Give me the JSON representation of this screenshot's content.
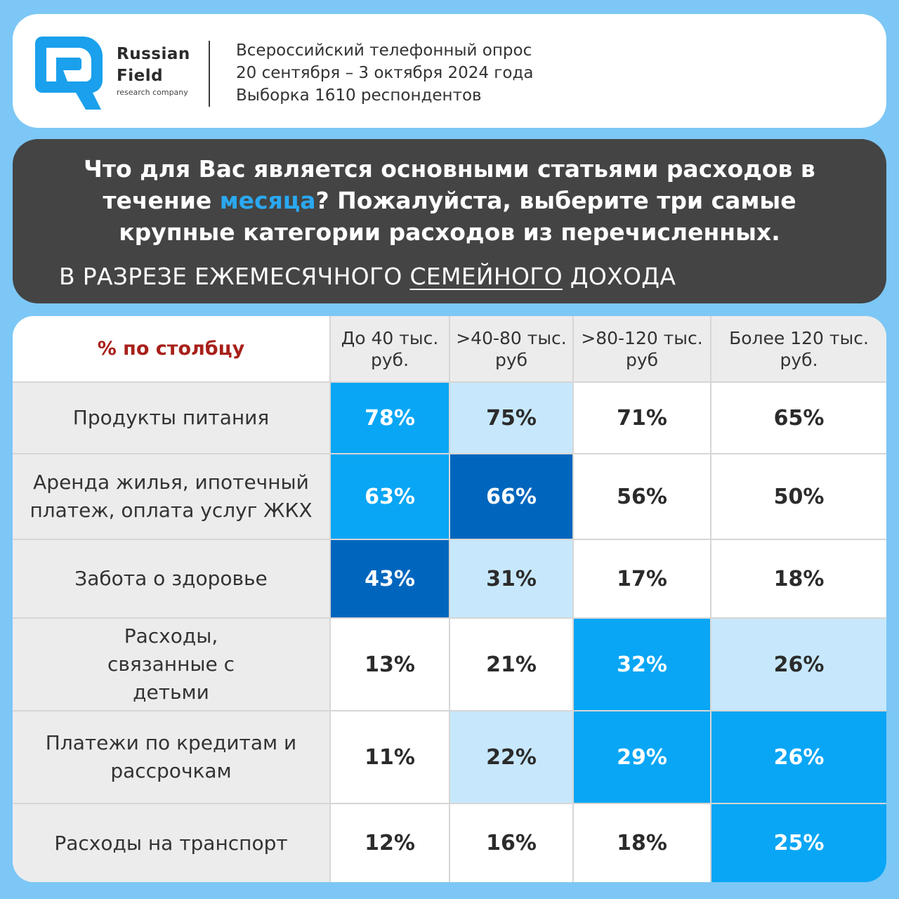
{
  "brand": {
    "name_line1": "Russian",
    "name_line2": "Field",
    "tagline": "research company",
    "logo_color": "#1aa0ec"
  },
  "survey": {
    "line1": "Всероссийский телефонный опрос",
    "line2": "20 сентября – 3 октября 2024 года",
    "line3": "Выборка 1610 респондентов"
  },
  "question": {
    "part1": "Что для Вас является основными статьями расходов в течение ",
    "accent": "месяца",
    "part2": "? Пожалуйста, выберите три самые крупные категории расходов из перечисленных.",
    "accent_color": "#2aa8f0"
  },
  "subtitle": {
    "before": "В РАЗРЕЗЕ ЕЖЕМЕСЯЧНОГО ",
    "underlined": "СЕМЕЙНОГО",
    "after": " ДОХОДА"
  },
  "chart_data": {
    "type": "table",
    "corner_label": "% по столбцу",
    "columns": [
      "До 40 тыс. руб.",
      ">40-80 тыс. руб",
      ">80-120 тыс. руб",
      "Более 120 тыс. руб."
    ],
    "rows": [
      {
        "label": "Продукты питания",
        "values": [
          "78%",
          "75%",
          "71%",
          "65%"
        ],
        "highlight": [
          2,
          1,
          0,
          0
        ]
      },
      {
        "label": "Аренда жилья, ипотечный платеж,  оплата услуг ЖКХ",
        "values": [
          "63%",
          "66%",
          "56%",
          "50%"
        ],
        "highlight": [
          2,
          3,
          0,
          0
        ]
      },
      {
        "label": "Забота о здоровье",
        "values": [
          "43%",
          "31%",
          "17%",
          "18%"
        ],
        "highlight": [
          3,
          1,
          0,
          0
        ]
      },
      {
        "label": "Расходы, связанные с детьми",
        "values": [
          "13%",
          "21%",
          "32%",
          "26%"
        ],
        "highlight": [
          0,
          0,
          2,
          1
        ]
      },
      {
        "label": "Платежи по кредитам и рассрочкам",
        "values": [
          "11%",
          "22%",
          "29%",
          "26%"
        ],
        "highlight": [
          0,
          1,
          2,
          2
        ]
      },
      {
        "label": "Расходы на транспорт",
        "values": [
          "12%",
          "16%",
          "18%",
          "25%"
        ],
        "highlight": [
          0,
          0,
          0,
          2
        ]
      }
    ],
    "highlight_colors": [
      "#ffffff",
      "#c7e8fc",
      "#09a6f5",
      "#0066bd"
    ]
  }
}
